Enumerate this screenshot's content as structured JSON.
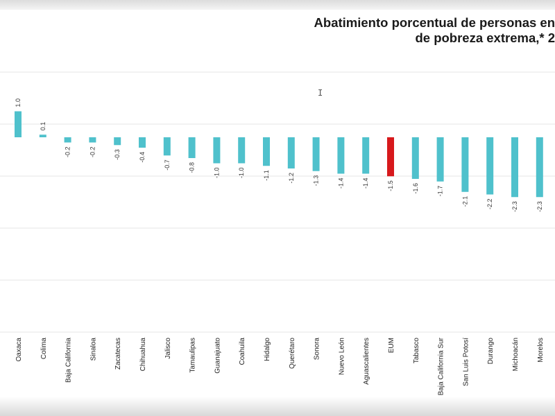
{
  "chart_data": {
    "type": "bar",
    "title_lines": [
      "Abatimiento porcentual de personas en",
      "de pobreza extrema,* 2"
    ],
    "categories": [
      "Oaxaca",
      "Colima",
      "Baja California",
      "Sinaloa",
      "Zacatecas",
      "Chihuahua",
      "Jalisco",
      "Tamaulipas",
      "Guanajuato",
      "Coahuila",
      "Hidalgo",
      "Querétaro",
      "Sonora",
      "Nuevo León",
      "Aguascalientes",
      "EUM",
      "Tabasco",
      "Baja California Sur",
      "San Luis Potosí",
      "Durango",
      "Michoacán",
      "Morelos"
    ],
    "values": [
      1.0,
      0.1,
      -0.2,
      -0.2,
      -0.3,
      -0.4,
      -0.7,
      -0.8,
      -1.0,
      -1.0,
      -1.1,
      -1.2,
      -1.3,
      -1.4,
      -1.4,
      -1.5,
      -1.6,
      -1.7,
      -2.1,
      -2.2,
      -2.3,
      -2.3
    ],
    "value_labels": [
      "1.0",
      "0.1",
      "-0.2",
      "-0.2",
      "-0.3",
      "-0.4",
      "-0.7",
      "-0.8",
      "-1.0",
      "-1.0",
      "-1.1",
      "-1.2",
      "-1.3",
      "-1.4",
      "-1.4",
      "-1.5",
      "-1.6",
      "-1.7",
      "-2.1",
      "-2.2",
      "-2.3",
      "-2.3"
    ],
    "highlight_index": 15,
    "colors": {
      "bar": "#4fc1cc",
      "highlight": "#d7191c",
      "grid": "#e6e6e6",
      "label": "#333333"
    },
    "ylim": [
      -7,
      2.5
    ],
    "grid": true
  },
  "cursor_glyph": "I"
}
